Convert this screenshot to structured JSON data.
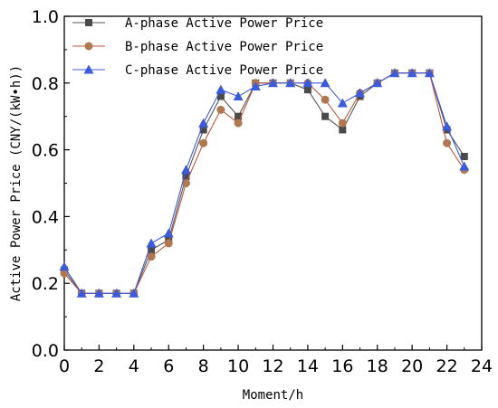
{
  "chart_data": {
    "type": "line",
    "xlabel": "Moment/h",
    "ylabel": "Active Power Price (CNY/(kW•h))",
    "xlim": [
      0,
      24
    ],
    "ylim": [
      0.0,
      1.0
    ],
    "xticks": [
      "0",
      "2",
      "4",
      "6",
      "8",
      "10",
      "12",
      "14",
      "16",
      "18",
      "20",
      "22",
      "24"
    ],
    "yticks": [
      "0.0",
      "0.2",
      "0.4",
      "0.6",
      "0.8",
      "1.0"
    ],
    "legend_position": "top-left",
    "grid": false,
    "x": [
      0,
      1,
      2,
      3,
      4,
      5,
      6,
      7,
      8,
      9,
      10,
      11,
      12,
      13,
      14,
      15,
      16,
      17,
      18,
      19,
      20,
      21,
      22,
      23
    ],
    "series": [
      {
        "name": "A-phase Active Power Price",
        "marker": "square",
        "color": "#4a4a4a",
        "line_color": "#555555",
        "values": [
          0.24,
          0.17,
          0.17,
          0.17,
          0.17,
          0.3,
          0.33,
          0.52,
          0.66,
          0.76,
          0.7,
          0.8,
          0.8,
          0.8,
          0.78,
          0.7,
          0.66,
          0.76,
          0.8,
          0.83,
          0.83,
          0.83,
          0.66,
          0.58
        ]
      },
      {
        "name": "B-phase Active Power Price",
        "marker": "circle",
        "color": "#b07850",
        "line_color": "#c0563c",
        "values": [
          0.23,
          0.17,
          0.17,
          0.17,
          0.17,
          0.28,
          0.32,
          0.5,
          0.62,
          0.72,
          0.68,
          0.8,
          0.8,
          0.8,
          0.8,
          0.75,
          0.68,
          0.77,
          0.8,
          0.83,
          0.83,
          0.83,
          0.62,
          0.54
        ]
      },
      {
        "name": "C-phase Active Power Price",
        "marker": "triangle",
        "color": "#3b5bdb",
        "line_color": "#3b5bdb",
        "values": [
          0.25,
          0.17,
          0.17,
          0.17,
          0.17,
          0.32,
          0.35,
          0.54,
          0.68,
          0.78,
          0.76,
          0.79,
          0.8,
          0.8,
          0.8,
          0.8,
          0.74,
          0.77,
          0.8,
          0.83,
          0.83,
          0.83,
          0.67,
          0.55
        ]
      }
    ]
  }
}
